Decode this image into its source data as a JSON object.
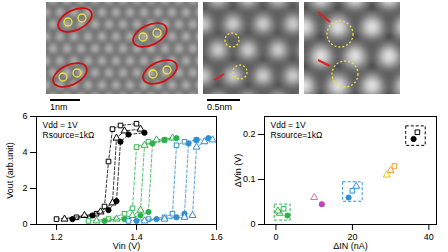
{
  "scale_bars": [
    "1nm",
    "0.5nm"
  ],
  "chart_data": [
    {
      "type": "line",
      "x_label": "Vin (V)",
      "y_label": "Vout (arb.unit)",
      "annotations": [
        "Vdd = 1V",
        "Rsource=1kΩ"
      ],
      "xlim": [
        1.15,
        1.6
      ],
      "xticks": [
        1.2,
        1.4,
        1.6
      ],
      "ylim": [
        0,
        6
      ],
      "yticks": [
        0,
        2,
        4,
        6
      ],
      "line_style": "dashed",
      "series": [
        {
          "color": "#000000",
          "marker": "square-open",
          "x": [
            1.2,
            1.25,
            1.3,
            1.32,
            1.33,
            1.34,
            1.36,
            1.4
          ],
          "values": [
            0.3,
            0.4,
            0.6,
            1.0,
            3.5,
            5.3,
            5.5,
            5.6
          ]
        },
        {
          "color": "#000000",
          "marker": "triangle-open",
          "x": [
            1.22,
            1.27,
            1.31,
            1.34,
            1.35,
            1.37,
            1.41
          ],
          "values": [
            0.3,
            0.5,
            0.7,
            1.2,
            4.8,
            5.2,
            5.3
          ]
        },
        {
          "color": "#000000",
          "marker": "circle",
          "x": [
            1.24,
            1.29,
            1.33,
            1.35,
            1.36,
            1.38,
            1.42
          ],
          "values": [
            0.3,
            0.5,
            0.8,
            1.3,
            4.6,
            5.0,
            5.1
          ]
        },
        {
          "color": "#2bb34a",
          "marker": "square-open",
          "x": [
            1.28,
            1.33,
            1.37,
            1.39,
            1.4,
            1.43,
            1.47
          ],
          "values": [
            0.2,
            0.3,
            0.6,
            0.9,
            4.3,
            4.6,
            4.7
          ]
        },
        {
          "color": "#2bb34a",
          "marker": "triangle-open",
          "x": [
            1.3,
            1.35,
            1.39,
            1.41,
            1.42,
            1.45,
            1.49
          ],
          "values": [
            0.2,
            0.3,
            0.5,
            0.8,
            4.4,
            4.7,
            4.8
          ]
        },
        {
          "color": "#2bb34a",
          "marker": "circle",
          "x": [
            1.32,
            1.37,
            1.41,
            1.43,
            1.44,
            1.47,
            1.5
          ],
          "values": [
            0.2,
            0.3,
            0.5,
            0.7,
            4.5,
            4.7,
            4.8
          ]
        },
        {
          "color": "#2e8fd0",
          "marker": "square-open",
          "x": [
            1.38,
            1.43,
            1.47,
            1.49,
            1.5,
            1.52,
            1.55
          ],
          "values": [
            0.2,
            0.3,
            0.4,
            0.6,
            4.4,
            4.6,
            4.7
          ]
        },
        {
          "color": "#2e8fd0",
          "marker": "circle",
          "x": [
            1.4,
            1.45,
            1.5,
            1.52,
            1.53,
            1.55,
            1.58
          ],
          "values": [
            0.2,
            0.3,
            0.4,
            0.6,
            4.5,
            4.7,
            4.8
          ]
        },
        {
          "color": "#2e8fd0",
          "marker": "triangle-open",
          "x": [
            1.42,
            1.47,
            1.52,
            1.54,
            1.55,
            1.57,
            1.59
          ],
          "values": [
            0.2,
            0.3,
            0.4,
            0.5,
            4.3,
            4.6,
            4.7
          ]
        }
      ]
    },
    {
      "type": "scatter",
      "x_label": "ΔIN (nA)",
      "y_label": "ΔVin (V)",
      "annotations": [
        "Vdd = 1V",
        "Rsource=1kΩ"
      ],
      "xlim": [
        -3,
        42
      ],
      "xticks": [
        0,
        20,
        40
      ],
      "ylim": [
        0,
        0.24
      ],
      "yticks": [
        0,
        0.1,
        0.2
      ],
      "series": [
        {
          "color": "#000000",
          "marker": "square-open",
          "x": [
            37
          ],
          "values": [
            0.205
          ]
        },
        {
          "color": "#000000",
          "marker": "circle",
          "x": [
            36
          ],
          "values": [
            0.19
          ]
        },
        {
          "color": "#f0a030",
          "marker": "square-open",
          "x": [
            31
          ],
          "values": [
            0.13
          ]
        },
        {
          "color": "#f0a030",
          "marker": "triangle-open",
          "x": [
            30
          ],
          "values": [
            0.12
          ]
        },
        {
          "color": "#e8c020",
          "marker": "triangle-open",
          "x": [
            29
          ],
          "values": [
            0.11
          ]
        },
        {
          "color": "#2e8fd0",
          "marker": "square-open",
          "x": [
            20
          ],
          "values": [
            0.075
          ]
        },
        {
          "color": "#2e8fd0",
          "marker": "circle",
          "x": [
            19
          ],
          "values": [
            0.06
          ]
        },
        {
          "color": "#2e8fd0",
          "marker": "triangle-open",
          "x": [
            21
          ],
          "values": [
            0.085
          ]
        },
        {
          "color": "#e070b0",
          "marker": "triangle-open",
          "x": [
            10
          ],
          "values": [
            0.06
          ]
        },
        {
          "color": "#c040c0",
          "marker": "circle",
          "x": [
            12
          ],
          "values": [
            0.045
          ]
        },
        {
          "color": "#2bb34a",
          "marker": "square-open",
          "x": [
            2
          ],
          "values": [
            0.035
          ]
        },
        {
          "color": "#2bb34a",
          "marker": "triangle-open",
          "x": [
            1
          ],
          "values": [
            0.025
          ]
        },
        {
          "color": "#2bb34a",
          "marker": "circle",
          "x": [
            3
          ],
          "values": [
            0.02
          ]
        },
        {
          "color": "#2bb34a",
          "marker": "triangle-open",
          "x": [
            0.5
          ],
          "values": [
            0.03
          ]
        }
      ]
    }
  ]
}
